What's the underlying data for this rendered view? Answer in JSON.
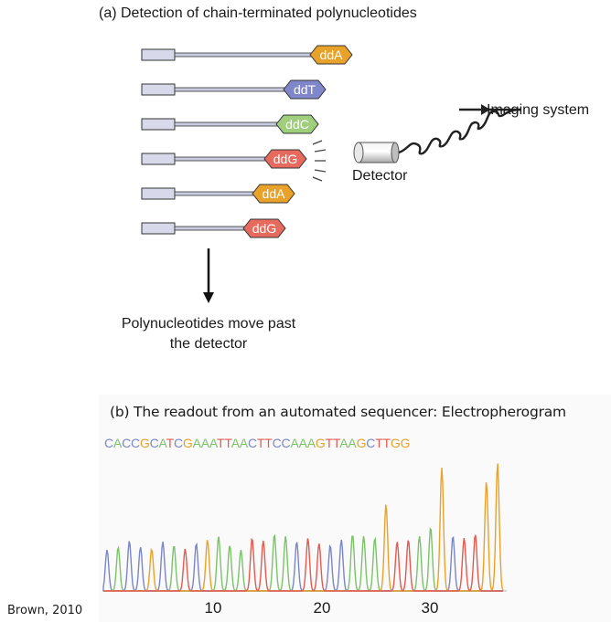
{
  "panel_a": {
    "title": "(a)  Detection of chain-terminated polynucleotides",
    "strands": [
      {
        "label": "ddA",
        "color": "#e8a22a"
      },
      {
        "label": "ddT",
        "color": "#7f86c9"
      },
      {
        "label": "ddC",
        "color": "#9fcf7d"
      },
      {
        "label": "ddG",
        "color": "#e66a5e"
      },
      {
        "label": "ddA",
        "color": "#e8a22a"
      },
      {
        "label": "ddG",
        "color": "#e66a5e"
      }
    ],
    "detector_label": "Detector",
    "imaging_label": "Imaging system",
    "movement_line1": "Polynucleotides move past",
    "movement_line2": "the detector"
  },
  "panel_b": {
    "title": "(b) The readout from an automated sequencer: Electropherogram",
    "sequence": "CACCGCATCGAAATTAACTTCCAAAGTTAAGCTTGG",
    "base_colors": {
      "A": "#7cc26b",
      "C": "#7a86c6",
      "G": "#e8a22a",
      "T": "#e35a50"
    },
    "axis_numbers": [
      "10",
      "20",
      "30"
    ]
  },
  "credit": "Brown, 2010"
}
